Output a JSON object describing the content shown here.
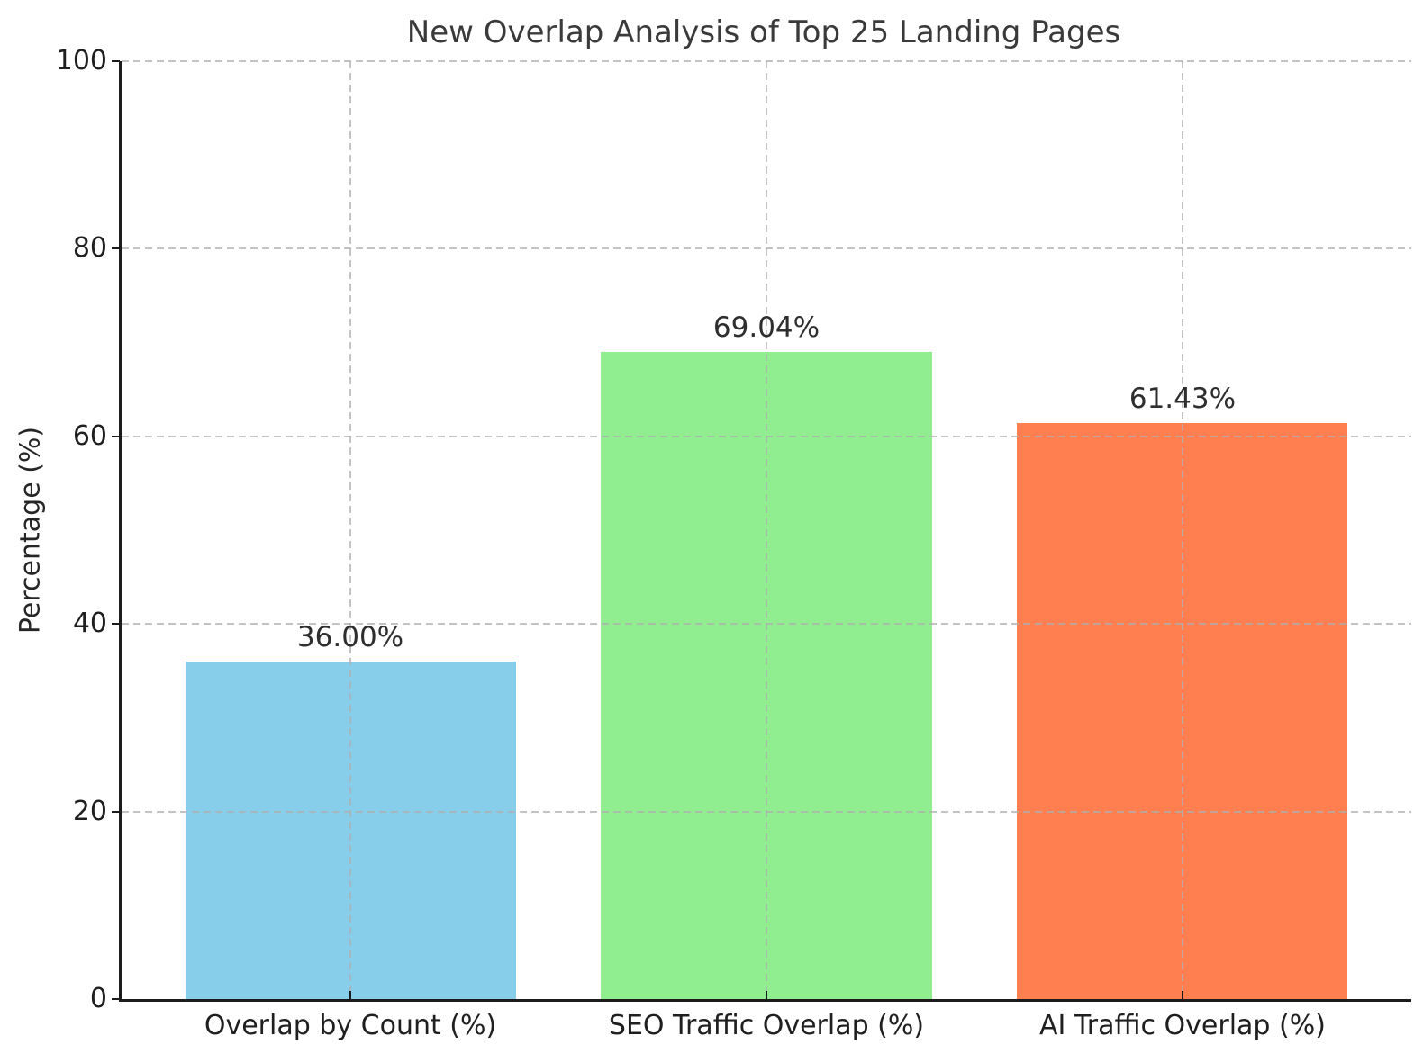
{
  "chart_data": {
    "type": "bar",
    "title": "New Overlap Analysis of Top 25 Landing Pages",
    "categories": [
      "Overlap by Count (%)",
      "SEO Traffic Overlap (%)",
      "AI Traffic Overlap (%)"
    ],
    "values": [
      36.0,
      69.04,
      61.43
    ],
    "value_labels": [
      "36.00%",
      "69.04%",
      "61.43%"
    ],
    "bar_colors": [
      "#87CEEB",
      "#90EE90",
      "#FF7F50"
    ],
    "xlabel": "",
    "ylabel": "Percentage (%)",
    "ylim": [
      0,
      100
    ],
    "yticks": [
      0,
      20,
      40,
      60,
      80,
      100
    ],
    "grid": "dashed gridlines on both axes, drawn above bars",
    "legend_position": "none"
  },
  "style": {
    "background": "#ffffff",
    "spine_color": "#1c1c1c",
    "grid_color": "#c9c9c9",
    "title_color": "#3a3a3a",
    "tick_label_color": "#1f1f1f"
  },
  "layout": {
    "bar_center_percents": [
      17.74,
      50.0,
      82.26
    ],
    "bar_width_percent": 25.63
  }
}
